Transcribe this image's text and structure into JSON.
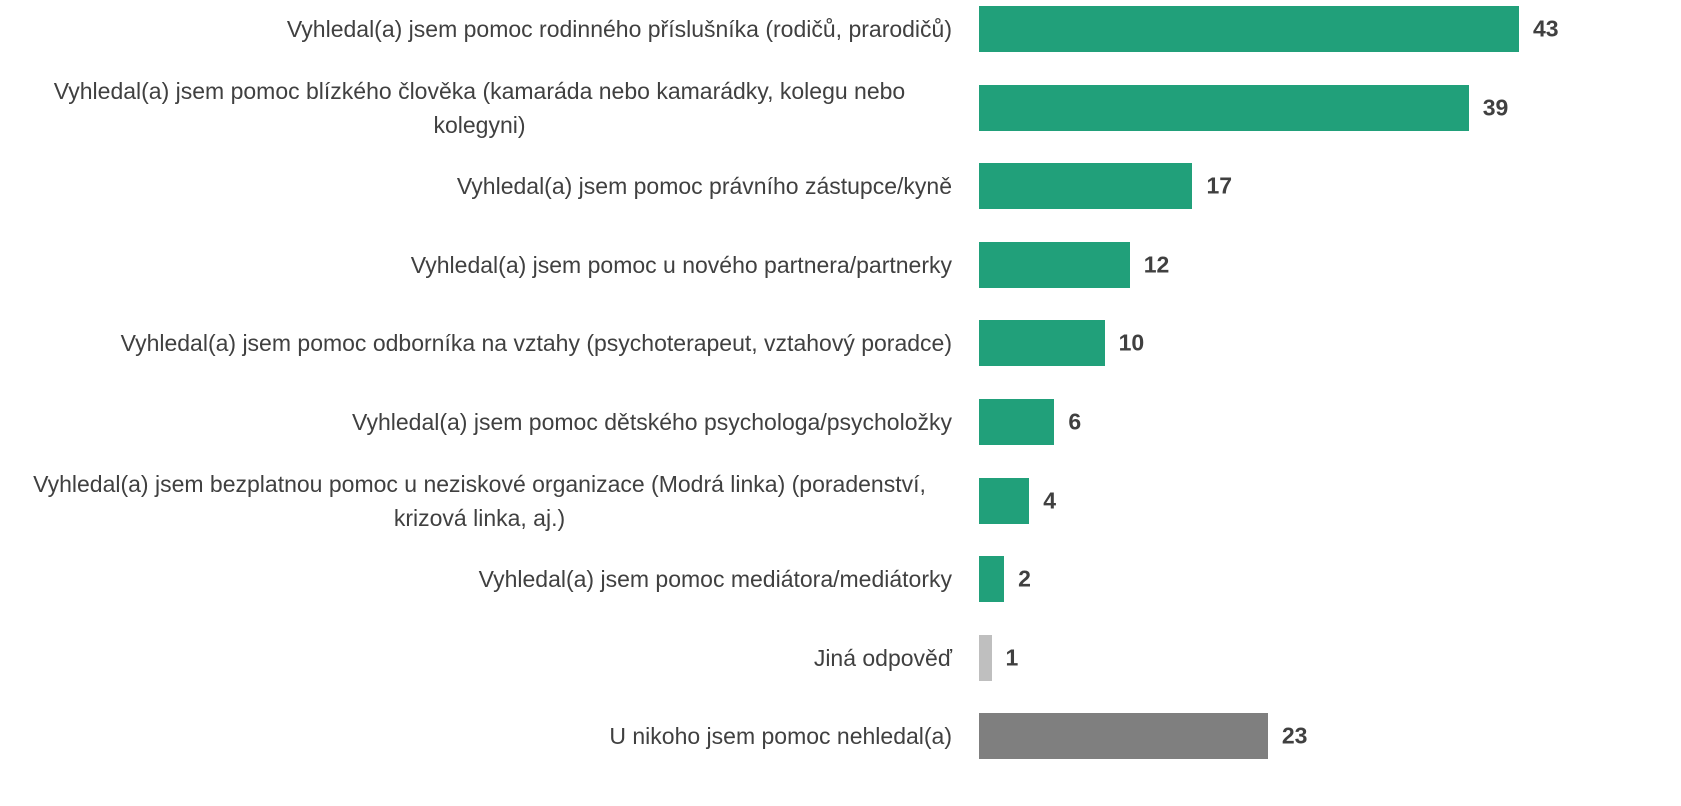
{
  "chart_data": {
    "type": "bar",
    "orientation": "horizontal",
    "categories": [
      "Vyhledal(a) jsem pomoc rodinného příslušníka (rodičů, prarodičů)",
      "Vyhledal(a) jsem pomoc blízkého člověka (kamaráda nebo kamarádky, kolegu nebo kolegyni)",
      "Vyhledal(a) jsem pomoc právního zástupce/kyně",
      "Vyhledal(a) jsem pomoc u nového partnera/partnerky",
      "Vyhledal(a) jsem pomoc odborníka na vztahy (psychoterapeut, vztahový poradce)",
      "Vyhledal(a) jsem pomoc dětského psychologa/psycholožky",
      "Vyhledal(a) jsem bezplatnou pomoc u neziskové organizace (Modrá linka) (poradenství, krizová linka, aj.)",
      "Vyhledal(a) jsem pomoc mediátora/mediátorky",
      "Jiná odpověď",
      "U nikoho jsem pomoc nehledal(a)"
    ],
    "values": [
      43,
      39,
      17,
      12,
      10,
      6,
      4,
      2,
      1,
      23
    ],
    "colors": [
      "#21a07a",
      "#21a07a",
      "#21a07a",
      "#21a07a",
      "#21a07a",
      "#21a07a",
      "#21a07a",
      "#21a07a",
      "#bfbfbf",
      "#7f7f7f"
    ]
  }
}
